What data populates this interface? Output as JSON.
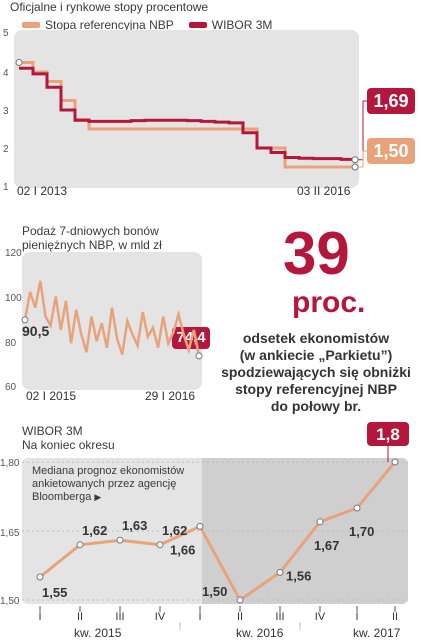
{
  "colors": {
    "nbp": "#e9a37a",
    "wibor": "#b5173c",
    "line3": "#e9a37a",
    "panel": "#e4e4e4",
    "shade": "#cfcfcf"
  },
  "chart_data": [
    {
      "type": "line",
      "title": "Oficjalne i rynkowe stopy procentowe",
      "legend": [
        "Stopa referencyjna NBP",
        "WIBOR 3M"
      ],
      "ylim": [
        1,
        5
      ],
      "yticks": [
        "1",
        "2",
        "3",
        "4",
        "5"
      ],
      "xlabels": [
        "02 I 2013",
        "03 II 2016"
      ],
      "series": [
        {
          "name": "Stopa referencyjna NBP",
          "values": [
            4.25,
            4.0,
            3.75,
            3.25,
            2.75,
            2.5,
            2.5,
            2.5,
            2.5,
            2.5,
            2.5,
            2.5,
            2.5,
            2.5,
            2.5,
            2.5,
            2.5,
            2.0,
            2.0,
            1.5,
            1.5,
            1.5,
            1.5,
            1.5,
            1.5
          ]
        },
        {
          "name": "WIBOR 3M",
          "values": [
            4.1,
            3.95,
            3.6,
            3.0,
            2.73,
            2.7,
            2.7,
            2.7,
            2.72,
            2.73,
            2.73,
            2.73,
            2.72,
            2.7,
            2.68,
            2.66,
            2.4,
            2.0,
            1.88,
            1.75,
            1.73,
            1.72,
            1.72,
            1.7,
            1.69
          ]
        }
      ],
      "end_labels": [
        "1,69",
        "1,50"
      ]
    },
    {
      "type": "line",
      "title": "Podaż 7-dniowych bonów pieniężnych NBP, w mld zł",
      "ylim": [
        60,
        120
      ],
      "yticks": [
        "60",
        "80",
        "100",
        "120"
      ],
      "xlabels": [
        "02 I 2015",
        "29 I 2016"
      ],
      "values": [
        90.5,
        103,
        96,
        108,
        92,
        88,
        101,
        86,
        99,
        80,
        95,
        84,
        76,
        92,
        81,
        89,
        78,
        96,
        82,
        75,
        90,
        84,
        79,
        94,
        83,
        87,
        78,
        92,
        80,
        85,
        93,
        84,
        77,
        86,
        74.4
      ],
      "start_label": "90,5",
      "end_label": "74,4"
    },
    {
      "type": "line",
      "title": "WIBOR 3M",
      "subtitle": "Na koniec okresu",
      "note": "Mediana prognoz ekonomistów ankietowanych przez agencję Bloomberga",
      "ylim": [
        1.5,
        1.8
      ],
      "yticks": [
        "1,50",
        "1,65",
        "1,80"
      ],
      "categories": [
        "I",
        "II",
        "III",
        "IV",
        "I",
        "II",
        "III",
        "IV",
        "I",
        "II"
      ],
      "groups": [
        "kw. 2015",
        "kw. 2016",
        "kw. 2017"
      ],
      "values": [
        1.55,
        1.62,
        1.63,
        1.62,
        1.66,
        1.5,
        1.56,
        1.67,
        1.7,
        1.8
      ],
      "labels": [
        "1,55",
        "1,62",
        "1,63",
        "1,62",
        "1,66",
        "1,50",
        "1,56",
        "1,67",
        "1,70",
        "1,8"
      ]
    }
  ],
  "stat": {
    "number": "39",
    "unit": "proc.",
    "caption": [
      "odsetek ekonomistów",
      "(w ankiecie „Parkietu”)",
      "spodziewających się obniżki",
      "stopy referencyjnej NBP",
      "do połowy br."
    ]
  }
}
